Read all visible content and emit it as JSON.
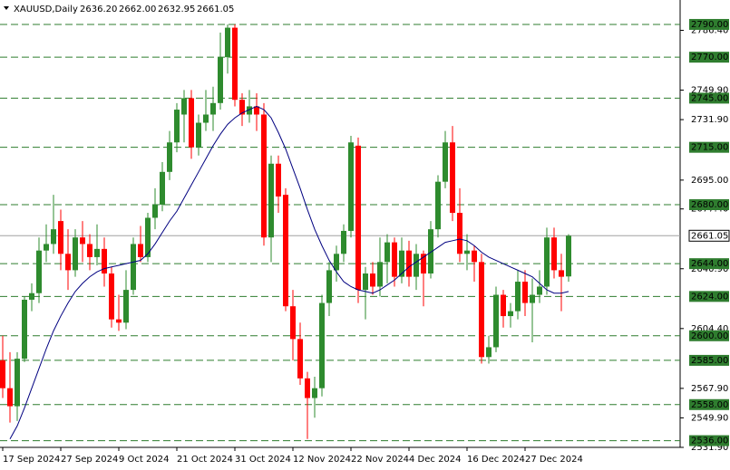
{
  "chart_data": {
    "type": "candlestick",
    "title": "XAUUSD,Daily",
    "header_values": [
      "2636.20",
      "2662.00",
      "2632.95",
      "2661.05"
    ],
    "categories": [
      "17 Sep 2024",
      null,
      null,
      null,
      null,
      null,
      null,
      null,
      "27 Sep 2024",
      null,
      null,
      null,
      null,
      null,
      null,
      null,
      "9 Oct 2024",
      null,
      null,
      null,
      null,
      null,
      null,
      null,
      "21 Oct 2024",
      null,
      null,
      null,
      null,
      null,
      null,
      null,
      "31 Oct 2024",
      null,
      null,
      null,
      null,
      null,
      null,
      null,
      "12 Nov 2024",
      null,
      null,
      null,
      null,
      null,
      null,
      null,
      "22 Nov 2024",
      null,
      null,
      null,
      null,
      null,
      null,
      null,
      "4 Dec 2024",
      null,
      null,
      null,
      null,
      null,
      null,
      null,
      "16 Dec 2024",
      null,
      null,
      null,
      null,
      null,
      null,
      null,
      "27 Dec 2024",
      null,
      null,
      null,
      null,
      null,
      null
    ],
    "open": [
      2585,
      2568,
      2557,
      2586,
      2622,
      2626,
      2652,
      2656,
      2670,
      2650,
      2640,
      2660,
      2656,
      2648,
      2653,
      2638,
      2610,
      2608,
      2628,
      2656,
      2648,
      2672,
      2680,
      2700,
      2718,
      2735,
      2745,
      2715,
      2730,
      2735,
      2742,
      2770,
      2788,
      2744,
      2735,
      2740,
      2735,
      2660,
      2705,
      2686,
      2618,
      2598,
      2574,
      2562,
      2568,
      2620,
      2640,
      2650,
      2664,
      2716,
      2628,
      2638,
      2630,
      2645,
      2657,
      2636,
      2652,
      2636,
      2650,
      2638,
      2665,
      2694,
      2718,
      2675,
      2650,
      2652,
      2645,
      2587,
      2593,
      2625,
      2612,
      2615,
      2633,
      2620,
      2625,
      2630,
      2660,
      2640,
      2636.2
    ],
    "high": [
      2600,
      2590,
      2590,
      2624,
      2632,
      2660,
      2668,
      2686,
      2677,
      2665,
      2665,
      2670,
      2662,
      2668,
      2660,
      2642,
      2625,
      2640,
      2660,
      2667,
      2675,
      2690,
      2706,
      2725,
      2742,
      2750,
      2750,
      2735,
      2750,
      2752,
      2785,
      2790,
      2790,
      2748,
      2750,
      2748,
      2742,
      2710,
      2710,
      2690,
      2628,
      2608,
      2578,
      2575,
      2625,
      2645,
      2655,
      2668,
      2722,
      2721,
      2642,
      2645,
      2660,
      2662,
      2660,
      2660,
      2658,
      2656,
      2652,
      2670,
      2698,
      2725,
      2728,
      2690,
      2662,
      2655,
      2650,
      2600,
      2630,
      2628,
      2620,
      2640,
      2640,
      2635,
      2640,
      2666,
      2666,
      2650,
      2662
    ],
    "low": [
      2562,
      2547,
      2548,
      2584,
      2615,
      2620,
      2645,
      2650,
      2640,
      2628,
      2636,
      2645,
      2640,
      2643,
      2630,
      2605,
      2603,
      2604,
      2625,
      2645,
      2645,
      2665,
      2676,
      2695,
      2712,
      2718,
      2708,
      2710,
      2725,
      2725,
      2738,
      2760,
      2740,
      2728,
      2730,
      2725,
      2655,
      2645,
      2675,
      2615,
      2585,
      2570,
      2537,
      2550,
      2563,
      2612,
      2633,
      2645,
      2660,
      2620,
      2610,
      2625,
      2624,
      2632,
      2630,
      2632,
      2630,
      2628,
      2618,
      2635,
      2660,
      2690,
      2670,
      2645,
      2640,
      2633,
      2583,
      2583,
      2590,
      2605,
      2605,
      2610,
      2612,
      2596,
      2620,
      2625,
      2635,
      2615,
      2632.95
    ],
    "close": [
      2568,
      2557,
      2586,
      2622,
      2626,
      2652,
      2656,
      2665,
      2650,
      2640,
      2660,
      2656,
      2648,
      2653,
      2638,
      2610,
      2608,
      2628,
      2656,
      2648,
      2672,
      2680,
      2700,
      2718,
      2738,
      2745,
      2715,
      2730,
      2735,
      2742,
      2770,
      2788,
      2744,
      2735,
      2740,
      2735,
      2660,
      2705,
      2685,
      2618,
      2598,
      2574,
      2562,
      2568,
      2620,
      2640,
      2650,
      2664,
      2718,
      2628,
      2638,
      2630,
      2645,
      2657,
      2636,
      2652,
      2636,
      2650,
      2638,
      2665,
      2694,
      2718,
      2675,
      2650,
      2652,
      2645,
      2587,
      2593,
      2625,
      2612,
      2615,
      2633,
      2620,
      2625,
      2630,
      2660,
      2640,
      2636,
      2661.05
    ],
    "ma": [
      null,
      2537,
      2545,
      2556,
      2568,
      2580,
      2592,
      2603,
      2612,
      2620,
      2627,
      2632,
      2636,
      2639,
      2641,
      2642,
      2643,
      2644,
      2645,
      2646,
      2650,
      2656,
      2663,
      2670,
      2676,
      2684,
      2692,
      2700,
      2708,
      2716,
      2723,
      2729,
      2733,
      2736,
      2738,
      2740,
      2738,
      2733,
      2724,
      2714,
      2702,
      2690,
      2677,
      2665,
      2655,
      2646,
      2639,
      2633,
      2630,
      2628,
      2627,
      2626,
      2628,
      2631,
      2634,
      2638,
      2642,
      2645,
      2648,
      2651,
      2654,
      2657,
      2658,
      2659,
      2658,
      2655,
      2651,
      2648,
      2646,
      2644,
      2642,
      2640,
      2638,
      2636,
      2632,
      2628,
      2626,
      2626,
      2627
    ],
    "up_color": "#2e8b2e",
    "down_color": "#ff0000",
    "ma_color": "#000080",
    "level_color": "#2f7d2f",
    "ylim": [
      2531.9,
      2804.9
    ],
    "yticks": [
      {
        "value": 2786.4,
        "label": "2786.40"
      },
      {
        "value": 2749.9,
        "label": "2749.90"
      },
      {
        "value": 2731.9,
        "label": "2731.90"
      },
      {
        "value": 2695,
        "label": "2695.00"
      },
      {
        "value": 2677.4,
        "label": "2677.40"
      },
      {
        "value": 2640.9,
        "label": "2640.90"
      },
      {
        "value": 2604.4,
        "label": "2604.40"
      },
      {
        "value": 2567.9,
        "label": "2567.90"
      },
      {
        "value": 2549.9,
        "label": "2549.90"
      },
      {
        "value": 2531.9,
        "label": "2531.90"
      }
    ],
    "levels": [
      {
        "value": 2790,
        "label": "2790.00"
      },
      {
        "value": 2770,
        "label": "2770.00"
      },
      {
        "value": 2745,
        "label": "2745.00"
      },
      {
        "value": 2715,
        "label": "2715.00"
      },
      {
        "value": 2680,
        "label": "2680.00"
      },
      {
        "value": 2644,
        "label": "2644.00"
      },
      {
        "value": 2624,
        "label": "2624.00"
      },
      {
        "value": 2600,
        "label": "2600.00"
      },
      {
        "value": 2585,
        "label": "2585.00"
      },
      {
        "value": 2558,
        "label": "2558.00"
      },
      {
        "value": 2536,
        "label": "2536.00"
      }
    ],
    "current_price": {
      "value": 2661.05,
      "label": "2661.05"
    }
  }
}
